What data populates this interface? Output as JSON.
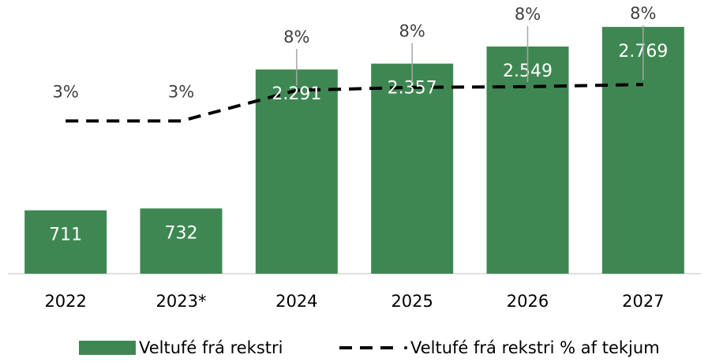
{
  "chart_data": {
    "type": "bar",
    "categories": [
      "2022",
      "2023*",
      "2024",
      "2025",
      "2026",
      "2027"
    ],
    "series": [
      {
        "name": "Veltufé frá rekstri",
        "color": "#3f8752",
        "values": [
          711,
          732,
          2291,
          2357,
          2549,
          2769
        ],
        "value_labels": [
          "711",
          "732",
          "2.291",
          "2.357",
          "2.549",
          "2.769"
        ]
      },
      {
        "name": "Veltufé frá rekstri % af tekjum",
        "type": "line",
        "axis": "y2",
        "color": "#000000",
        "values": [
          3.4,
          3.4,
          7.6,
          8.0,
          8.1,
          8.4
        ],
        "value_labels": [
          "3%",
          "3%",
          "8%",
          "8%",
          "8%",
          "8%"
        ]
      }
    ],
    "ylim": [
      0,
      3000
    ],
    "y2lim": [
      -17.5,
      19.1
    ],
    "legend": "bottom"
  }
}
